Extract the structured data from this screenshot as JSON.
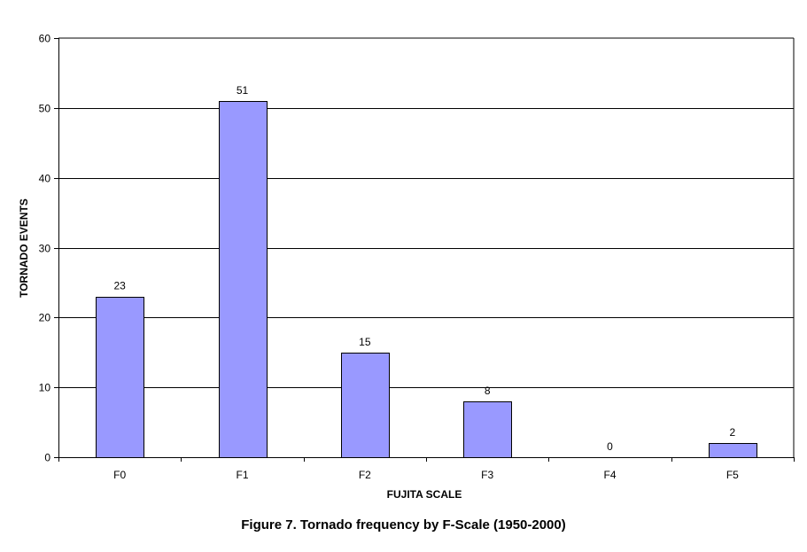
{
  "caption": "Figure 7. Tornado frequency by F-Scale (1950-2000)",
  "chart_data": {
    "type": "bar",
    "categories": [
      "F0",
      "F1",
      "F2",
      "F3",
      "F4",
      "F5"
    ],
    "values": [
      23,
      51,
      15,
      8,
      0,
      2
    ],
    "data_labels": [
      "23",
      "51",
      "15",
      "8",
      "0",
      "2"
    ],
    "xlabel": "FUJITA SCALE",
    "ylabel": "TORNADO EVENTS",
    "ylim": [
      0,
      60
    ],
    "yticks": [
      0,
      10,
      20,
      30,
      40,
      50,
      60
    ],
    "grid": true,
    "legend": "none",
    "bar_color": "#9999ff",
    "bar_edge_color": "#000000"
  }
}
